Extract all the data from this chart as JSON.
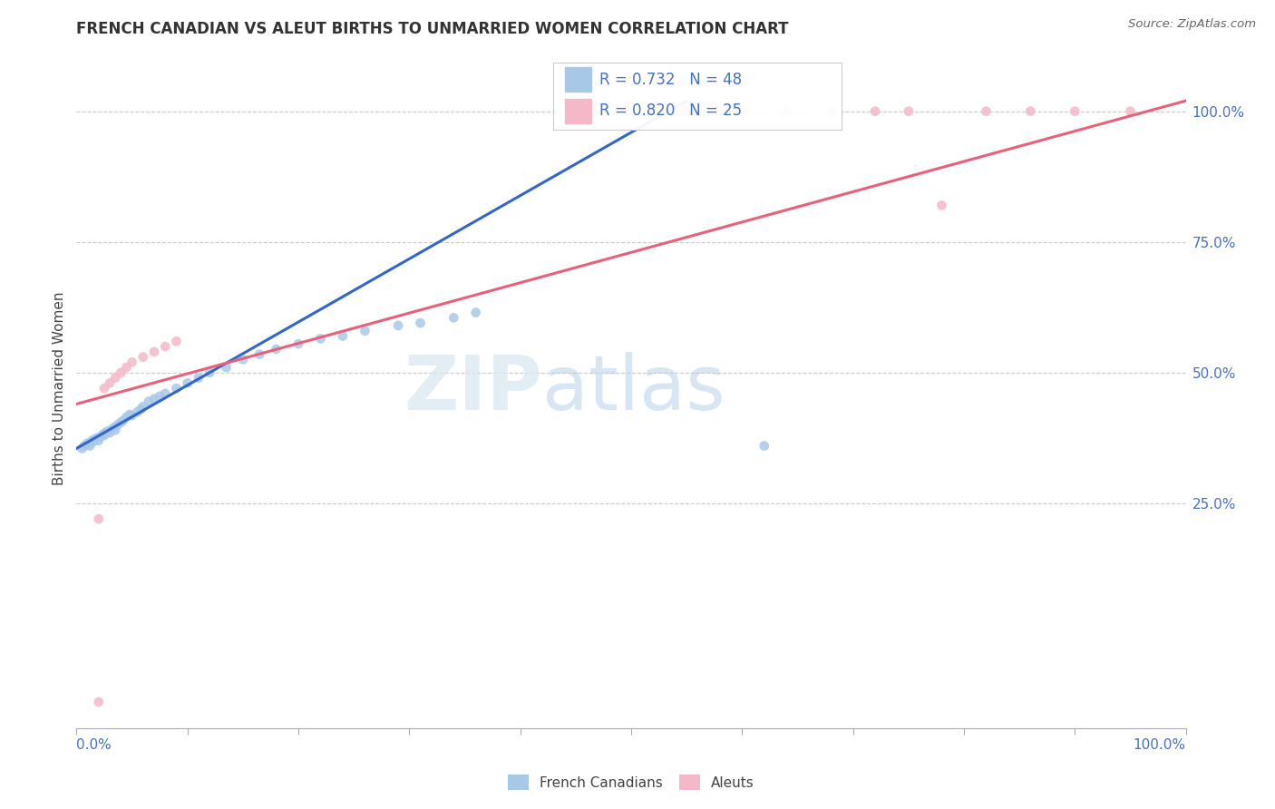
{
  "title": "FRENCH CANADIAN VS ALEUT BIRTHS TO UNMARRIED WOMEN CORRELATION CHART",
  "source": "Source: ZipAtlas.com",
  "ylabel": "Births to Unmarried Women",
  "ytick_vals": [
    0.25,
    0.5,
    0.75,
    1.0
  ],
  "ytick_labels": [
    "25.0%",
    "50.0%",
    "75.0%",
    "100.0%"
  ],
  "xlim": [
    0.0,
    1.0
  ],
  "ylim": [
    -0.18,
    1.12
  ],
  "legend_r_blue": "R = 0.732",
  "legend_n_blue": "N = 48",
  "legend_r_pink": "R = 0.820",
  "legend_n_pink": "N = 25",
  "blue_scatter_color": "#A8C8E8",
  "pink_scatter_color": "#F4B8C8",
  "blue_line_color": "#3366CC",
  "pink_line_color": "#E8607A",
  "watermark_zip": "ZIP",
  "watermark_atlas": "atlas",
  "fc_x": [
    0.005,
    0.007,
    0.01,
    0.012,
    0.014,
    0.015,
    0.016,
    0.018,
    0.02,
    0.022,
    0.024,
    0.025,
    0.026,
    0.028,
    0.03,
    0.032,
    0.034,
    0.035,
    0.037,
    0.04,
    0.042,
    0.045,
    0.048,
    0.05,
    0.055,
    0.058,
    0.06,
    0.065,
    0.07,
    0.075,
    0.08,
    0.09,
    0.1,
    0.11,
    0.12,
    0.135,
    0.15,
    0.165,
    0.18,
    0.2,
    0.22,
    0.24,
    0.26,
    0.29,
    0.31,
    0.34,
    0.36,
    0.62
  ],
  "fc_y": [
    0.355,
    0.36,
    0.365,
    0.36,
    0.37,
    0.368,
    0.372,
    0.375,
    0.37,
    0.378,
    0.382,
    0.38,
    0.385,
    0.388,
    0.385,
    0.392,
    0.395,
    0.39,
    0.4,
    0.405,
    0.408,
    0.415,
    0.42,
    0.418,
    0.425,
    0.43,
    0.435,
    0.445,
    0.45,
    0.455,
    0.46,
    0.47,
    0.48,
    0.49,
    0.5,
    0.51,
    0.525,
    0.535,
    0.545,
    0.555,
    0.565,
    0.57,
    0.58,
    0.59,
    0.595,
    0.605,
    0.615,
    0.36
  ],
  "al_x": [
    0.02,
    0.02,
    0.025,
    0.03,
    0.035,
    0.04,
    0.045,
    0.05,
    0.06,
    0.07,
    0.08,
    0.09,
    0.55,
    0.56,
    0.58,
    0.6,
    0.64,
    0.68,
    0.72,
    0.75,
    0.78,
    0.82,
    0.86,
    0.9,
    0.95
  ],
  "al_y": [
    0.22,
    -0.13,
    0.47,
    0.48,
    0.49,
    0.5,
    0.51,
    0.52,
    0.53,
    0.54,
    0.55,
    0.56,
    1.0,
    1.0,
    1.0,
    1.0,
    1.0,
    1.0,
    1.0,
    1.0,
    0.82,
    1.0,
    1.0,
    1.0,
    1.0
  ],
  "blue_line_x0": 0.0,
  "blue_line_y0": 0.355,
  "blue_line_x1": 0.55,
  "blue_line_y1": 1.02,
  "pink_line_x0": 0.0,
  "pink_line_y0": 0.44,
  "pink_line_x1": 1.0,
  "pink_line_y1": 1.02
}
